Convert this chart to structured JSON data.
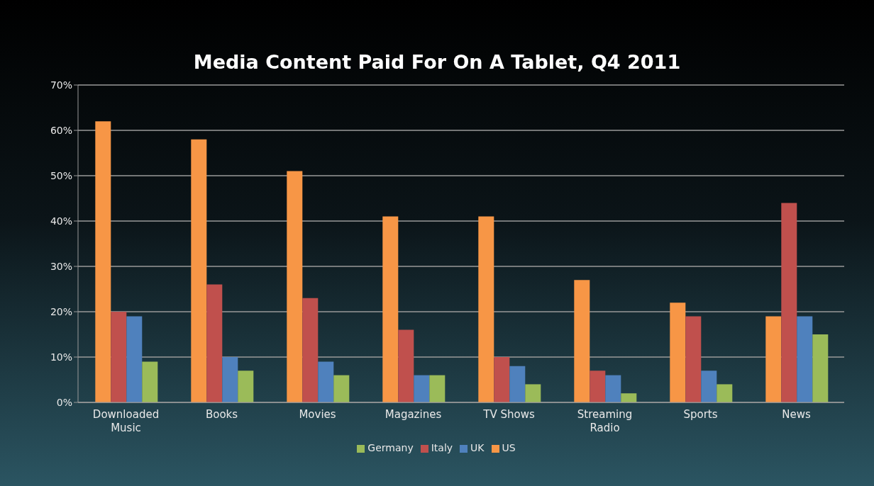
{
  "chart_data": {
    "type": "bar",
    "title": "Media Content Paid For On A Tablet, Q4 2011",
    "categories": [
      "Downloaded Music",
      "Books",
      "Movies",
      "Magazines",
      "TV Shows",
      "Streaming Radio",
      "Sports",
      "News"
    ],
    "series": [
      {
        "name": "US",
        "color": "#f79646",
        "values": [
          62,
          58,
          51,
          41,
          41,
          27,
          22,
          19
        ]
      },
      {
        "name": "Italy",
        "color": "#c0504d",
        "values": [
          20,
          26,
          23,
          16,
          10,
          7,
          19,
          44
        ]
      },
      {
        "name": "UK",
        "color": "#4f81bd",
        "values": [
          19,
          10,
          9,
          6,
          8,
          6,
          7,
          19
        ]
      },
      {
        "name": "Germany",
        "color": "#9bbb59",
        "values": [
          9,
          7,
          6,
          6,
          4,
          2,
          4,
          15
        ]
      }
    ],
    "ylim": [
      0,
      70
    ],
    "yticks": [
      {
        "value": 0,
        "label": "0%"
      },
      {
        "value": 10,
        "label": "10%"
      },
      {
        "value": 20,
        "label": "20%"
      },
      {
        "value": 30,
        "label": "30%"
      },
      {
        "value": 40,
        "label": "40%"
      },
      {
        "value": 50,
        "label": "50%"
      },
      {
        "value": 60,
        "label": "60%"
      },
      {
        "value": 70,
        "label": "70%"
      }
    ],
    "grid": "y",
    "legend": "bottom"
  }
}
